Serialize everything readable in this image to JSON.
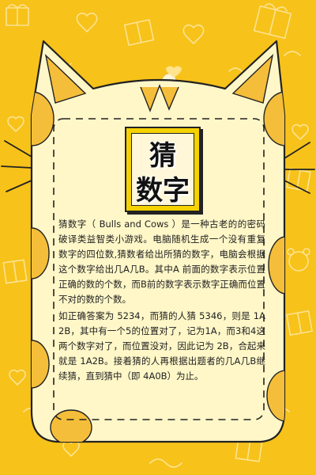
{
  "title": {
    "line1": "猜",
    "line2": "数字"
  },
  "description": {
    "paragraph1": "猜数字（ Bulls and Cows ）是一种古老的的密码破译类益智类小游戏。电脑随机生成一个没有重复数字的四位数,猜数者给出所猜的数字，电脑会根据这个数字给出几A几B。其中A 前面的数字表示位置正确的数的个数，而B前的数字表示数字正确而位置不对的数的个数。",
    "paragraph2": "如正确答案为 5234，而猜的人猜 5346，则是 1A2B，其中有一个5的位置对了，记为1A，而3和4这两个数字对了，而位置没对，因此记为 2B，合起来就是 1A2B。接着猜的人再根据出题者的几A几B继续猜，直到猜中（即 4A0B）为止。"
  },
  "colors": {
    "background": "#f7c21a",
    "card": "#fff7c8",
    "spots": "#f5be3a",
    "outline": "#222222"
  }
}
